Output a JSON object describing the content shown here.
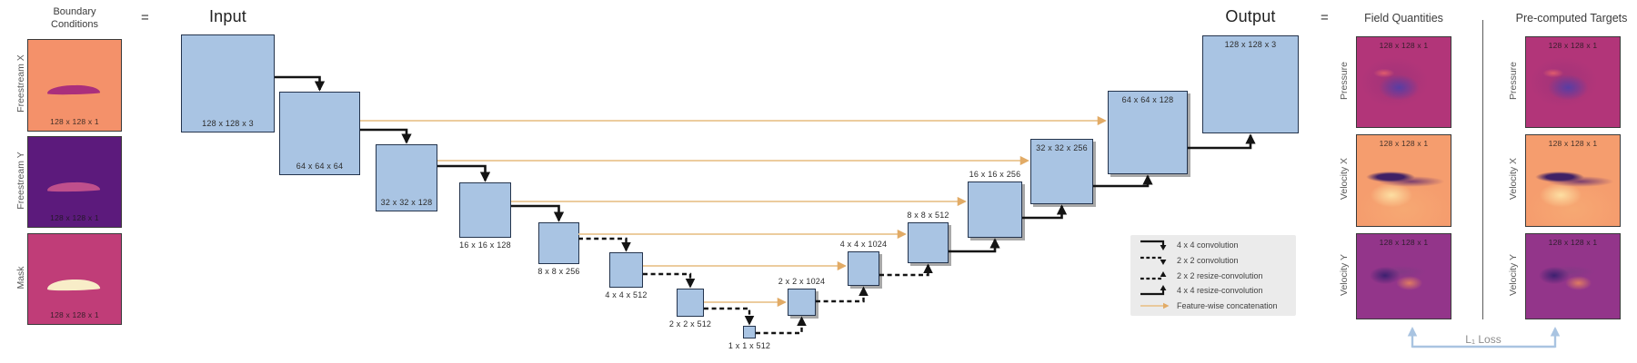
{
  "palette": {
    "block_fill": "#a9c4e3",
    "block_border": "#24344d",
    "arrow_black": "#141414",
    "concat_orange": "#e9c491",
    "loss_blue": "#a9c4e1",
    "legend_bg": "#ebebeb",
    "freestream_x_bg": "#f4916a",
    "freestream_y_bg": "#5c1a7c",
    "mask_bg": "#c03d78",
    "pressure_bg": "#b23579",
    "velocity_x_bg": "#f59d6e",
    "velocity_y_bg": "#93358a"
  },
  "boundary": {
    "title": "Boundary\nConditions",
    "equals": "=",
    "items": [
      {
        "label": "Freestream X",
        "dims": "128 x 128 x 1",
        "type": "freestream-x"
      },
      {
        "label": "Freestream Y",
        "dims": "128 x 128 x 1",
        "type": "freestream-y"
      },
      {
        "label": "Mask",
        "dims": "128 x 128 x 1",
        "type": "mask"
      }
    ]
  },
  "unet": {
    "input_title": "Input",
    "output_title": "Output",
    "blocks": [
      {
        "label": "128 x 128 x 3"
      },
      {
        "label": "64 x 64 x 64"
      },
      {
        "label": "32 x 32 x 128"
      },
      {
        "label": "16 x 16 x 128"
      },
      {
        "label": "8 x 8 x 256"
      },
      {
        "label": "4 x 4 x 512"
      },
      {
        "label": "2 x 2 x 512"
      },
      {
        "label": "1 x 1 x 512"
      },
      {
        "label": "2 x 2 x 1024"
      },
      {
        "label": "4 x 4 x 1024"
      },
      {
        "label": "8 x 8 x 512"
      },
      {
        "label": "16 x 16 x 256"
      },
      {
        "label": "32 x 32 x 256"
      },
      {
        "label": "64 x 64 x 128"
      },
      {
        "label": "128 x 128 x 3"
      }
    ]
  },
  "legend": {
    "items": [
      {
        "label": "4 x 4 convolution",
        "type": "solid-down"
      },
      {
        "label": "2 x 2 convolution",
        "type": "dashed-down"
      },
      {
        "label": "2 x 2 resize-convolution",
        "type": "dashed-up"
      },
      {
        "label": "4 x 4 resize-convolution",
        "type": "solid-up"
      },
      {
        "label": "Feature-wise concatenation",
        "type": "concat"
      }
    ]
  },
  "outputs": {
    "equals": "=",
    "loss_label": "L₁ Loss",
    "columns": [
      {
        "title": "Field Quantities",
        "items": [
          {
            "label": "Pressure",
            "dims": "128 x 128 x 1",
            "type": "pressure"
          },
          {
            "label": "Velocity X",
            "dims": "128 x 128 x 1",
            "type": "velocity-x"
          },
          {
            "label": "Velocity Y",
            "dims": "128 x 128 x 1",
            "type": "velocity-y"
          }
        ]
      },
      {
        "title": "Pre-computed Targets",
        "items": [
          {
            "label": "Pressure",
            "dims": "128 x 128 x 1",
            "type": "pressure"
          },
          {
            "label": "Velocity X",
            "dims": "128 x 128 x 1",
            "type": "velocity-x"
          },
          {
            "label": "Velocity Y",
            "dims": "128 x 128 x 1",
            "type": "velocity-y"
          }
        ]
      }
    ]
  }
}
